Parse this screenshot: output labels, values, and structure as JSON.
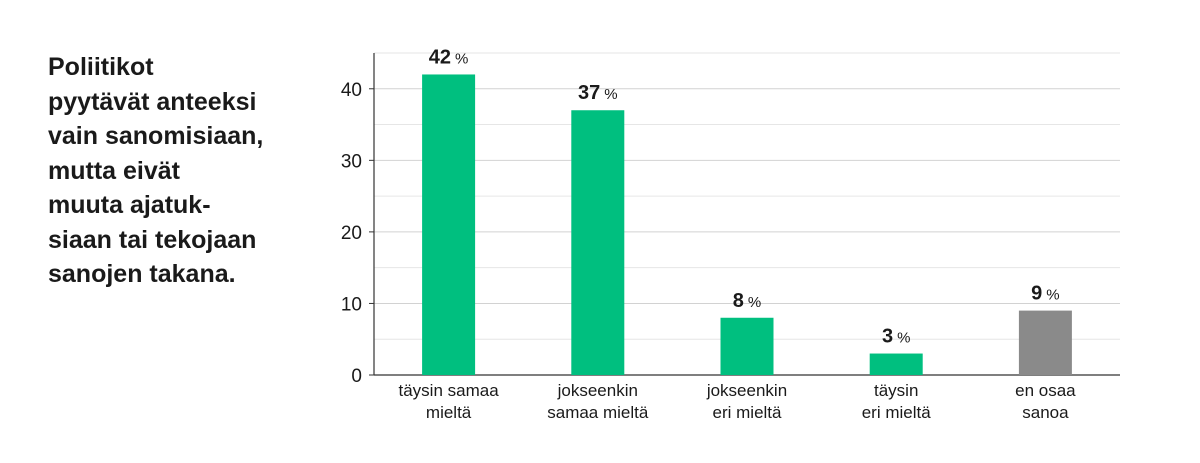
{
  "title_lines": [
    "Poliitikot",
    "pyytävät anteeksi",
    "vain sanomisiaan,",
    "mutta eivät",
    "muuta ajatuk-",
    "siaan tai tekojaan",
    "sanojen takana."
  ],
  "chart_data": {
    "type": "bar",
    "title": "Poliitikot pyytävät anteeksi vain sanomisiaan, mutta eivät muuta ajatuksiaan tai tekojaan sanojen takana.",
    "categories": [
      [
        "täysin samaa",
        "mieltä"
      ],
      [
        "jokseenkin",
        "samaa mieltä"
      ],
      [
        "jokseenkin",
        "eri mieltä"
      ],
      [
        "täysin",
        "eri mieltä"
      ],
      [
        "en osaa",
        "sanoa"
      ]
    ],
    "values": [
      42,
      37,
      8,
      3,
      9
    ],
    "value_labels": [
      "42",
      "37",
      "8",
      "3",
      "9"
    ],
    "unit": "%",
    "colors": [
      "#00bf7f",
      "#00bf7f",
      "#00bf7f",
      "#00bf7f",
      "#8a8a8a"
    ],
    "yticks": [
      "0",
      "10",
      "20",
      "30",
      "40"
    ],
    "ylim": [
      0,
      45
    ],
    "grid": true,
    "legend": "none"
  }
}
